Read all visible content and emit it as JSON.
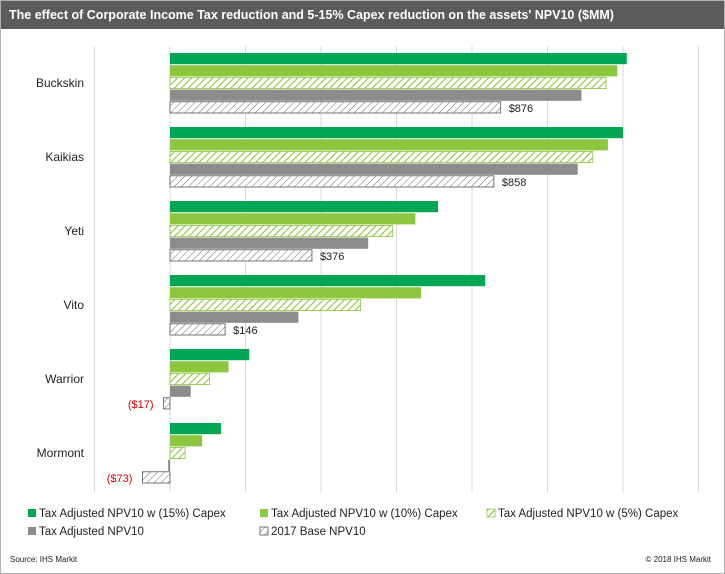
{
  "title": "The effect of Corporate Income Tax reduction and 5-15% Capex reduction on the assets' NPV10 ($MM)",
  "source": "Source: IHS Markit",
  "copyright": "© 2018 IHS Markit",
  "colors": {
    "capex15": "#00a651",
    "capex10": "#8dc63f",
    "capex5": "#8dc63f",
    "npv10": "#8c8c8c",
    "base": "#808080",
    "negative_label": "#e00000"
  },
  "chart_data": {
    "type": "bar",
    "orientation": "horizontal",
    "title": "The effect of Corporate Income Tax reduction and 5-15% Capex reduction on the assets' NPV10 ($MM)",
    "categories": [
      "Buckskin",
      "Kaikias",
      "Yeti",
      "Vito",
      "Warrior",
      "Mormont"
    ],
    "xlim": [
      -200,
      1400
    ],
    "grid": true,
    "legend_position": "bottom",
    "series": [
      {
        "name": "Tax Adjusted NPV10 w (15%) Capex",
        "key": "capex15",
        "pattern": "solid",
        "values": [
          1210,
          1200,
          710,
          835,
          210,
          135
        ]
      },
      {
        "name": "Tax Adjusted NPV10 w (10%) Capex",
        "key": "capex10",
        "pattern": "solid",
        "values": [
          1185,
          1160,
          650,
          665,
          155,
          85
        ]
      },
      {
        "name": "Tax Adjusted NPV10 w (5%) Capex",
        "key": "capex5",
        "pattern": "hatch",
        "values": [
          1155,
          1120,
          590,
          505,
          105,
          40
        ]
      },
      {
        "name": "Tax Adjusted NPV10",
        "key": "npv10",
        "pattern": "solid",
        "values": [
          1090,
          1080,
          525,
          340,
          55,
          -5
        ]
      },
      {
        "name": "2017 Base NPV10",
        "key": "base",
        "pattern": "hatch-open",
        "values": [
          876,
          858,
          376,
          146,
          -17,
          -73
        ],
        "labels": [
          "$876",
          "$858",
          "$376",
          "$146",
          "($17)",
          "($73)"
        ]
      }
    ]
  }
}
